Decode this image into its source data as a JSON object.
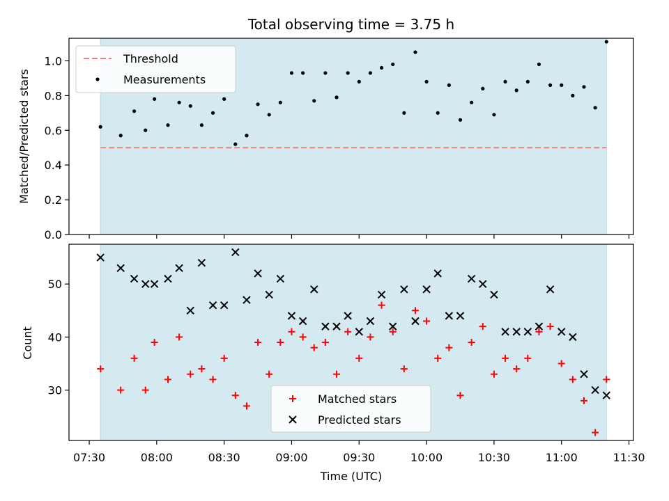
{
  "chart_data": {
    "title": "Total observing time = 3.75 h",
    "xlabel": "Time (UTC)",
    "x_ticks": [
      "07:30",
      "08:00",
      "08:30",
      "09:00",
      "09:30",
      "10:00",
      "10:30",
      "11:00",
      "11:30"
    ],
    "observing_window": {
      "start": "07:35",
      "end": "11:20",
      "color": "#d4eaf0"
    },
    "panels": [
      {
        "type": "scatter",
        "ylabel": "Matched/Predicted stars",
        "ylim": [
          0,
          1.13
        ],
        "y_ticks": [
          "0.0",
          "0.2",
          "0.4",
          "0.6",
          "0.8",
          "1.0"
        ],
        "y_tick_values": [
          0,
          0.2,
          0.4,
          0.6,
          0.8,
          1.0
        ],
        "legend_position": "top-left",
        "threshold": {
          "name": "Threshold",
          "value": 0.5,
          "color": "#f08080",
          "style": "dashed"
        },
        "series": [
          {
            "name": "Measurements",
            "color": "#000000",
            "marker": "dot",
            "x": [
              "07:35",
              "07:44",
              "07:50",
              "07:55",
              "07:59",
              "08:05",
              "08:10",
              "08:15",
              "08:20",
              "08:25",
              "08:30",
              "08:35",
              "08:40",
              "08:45",
              "08:50",
              "08:55",
              "09:00",
              "09:05",
              "09:10",
              "09:15",
              "09:20",
              "09:25",
              "09:30",
              "09:35",
              "09:40",
              "09:45",
              "09:50",
              "09:55",
              "10:00",
              "10:05",
              "10:10",
              "10:15",
              "10:20",
              "10:25",
              "10:30",
              "10:35",
              "10:40",
              "10:45",
              "10:50",
              "10:55",
              "11:00",
              "11:05",
              "11:10",
              "11:15",
              "11:20"
            ],
            "y": [
              0.62,
              0.57,
              0.71,
              0.6,
              0.78,
              0.63,
              0.76,
              0.74,
              0.63,
              0.7,
              0.78,
              0.52,
              0.57,
              0.75,
              0.69,
              0.76,
              0.93,
              0.93,
              0.77,
              0.93,
              0.79,
              0.93,
              0.88,
              0.93,
              0.96,
              0.98,
              0.7,
              1.05,
              0.88,
              0.7,
              0.86,
              0.66,
              0.76,
              0.84,
              0.69,
              0.88,
              0.83,
              0.88,
              0.98,
              0.86,
              0.86,
              0.8,
              0.85,
              0.73,
              1.11
            ]
          }
        ]
      },
      {
        "type": "scatter",
        "ylabel": "Count",
        "ylim": [
          20.5,
          57.5
        ],
        "y_ticks": [
          "30",
          "40",
          "50"
        ],
        "y_tick_values": [
          30,
          40,
          50
        ],
        "legend_position": "bottom-center",
        "series": [
          {
            "name": "Matched stars",
            "color": "#ff0000",
            "marker": "plus",
            "x": [
              "07:35",
              "07:44",
              "07:50",
              "07:55",
              "07:59",
              "08:05",
              "08:10",
              "08:15",
              "08:20",
              "08:25",
              "08:30",
              "08:35",
              "08:40",
              "08:45",
              "08:50",
              "08:55",
              "09:00",
              "09:05",
              "09:10",
              "09:15",
              "09:20",
              "09:25",
              "09:30",
              "09:35",
              "09:40",
              "09:45",
              "09:50",
              "09:55",
              "10:00",
              "10:05",
              "10:10",
              "10:15",
              "10:20",
              "10:25",
              "10:30",
              "10:35",
              "10:40",
              "10:45",
              "10:50",
              "10:55",
              "11:00",
              "11:05",
              "11:10",
              "11:15",
              "11:20"
            ],
            "y": [
              34,
              30,
              36,
              30,
              39,
              32,
              40,
              33,
              34,
              32,
              36,
              29,
              27,
              39,
              33,
              39,
              41,
              40,
              38,
              39,
              33,
              41,
              36,
              40,
              46,
              41,
              34,
              45,
              43,
              36,
              38,
              29,
              39,
              42,
              33,
              36,
              34,
              36,
              41,
              42,
              35,
              32,
              28,
              22,
              32
            ]
          },
          {
            "name": "Predicted stars",
            "color": "#000000",
            "marker": "x",
            "x": [
              "07:35",
              "07:44",
              "07:50",
              "07:55",
              "07:59",
              "08:05",
              "08:10",
              "08:15",
              "08:20",
              "08:25",
              "08:30",
              "08:35",
              "08:40",
              "08:45",
              "08:50",
              "08:55",
              "09:00",
              "09:05",
              "09:10",
              "09:15",
              "09:20",
              "09:25",
              "09:30",
              "09:35",
              "09:40",
              "09:45",
              "09:50",
              "09:55",
              "10:00",
              "10:05",
              "10:10",
              "10:15",
              "10:20",
              "10:25",
              "10:30",
              "10:35",
              "10:40",
              "10:45",
              "10:50",
              "10:55",
              "11:00",
              "11:05",
              "11:10",
              "11:15",
              "11:20"
            ],
            "y": [
              55,
              53,
              51,
              50,
              50,
              51,
              53,
              45,
              54,
              46,
              46,
              56,
              47,
              52,
              48,
              51,
              44,
              43,
              49,
              42,
              42,
              44,
              41,
              43,
              48,
              42,
              49,
              43,
              49,
              52,
              44,
              44,
              51,
              50,
              48,
              41,
              41,
              41,
              42,
              49,
              41,
              40,
              33,
              30,
              29
            ]
          }
        ]
      }
    ]
  }
}
